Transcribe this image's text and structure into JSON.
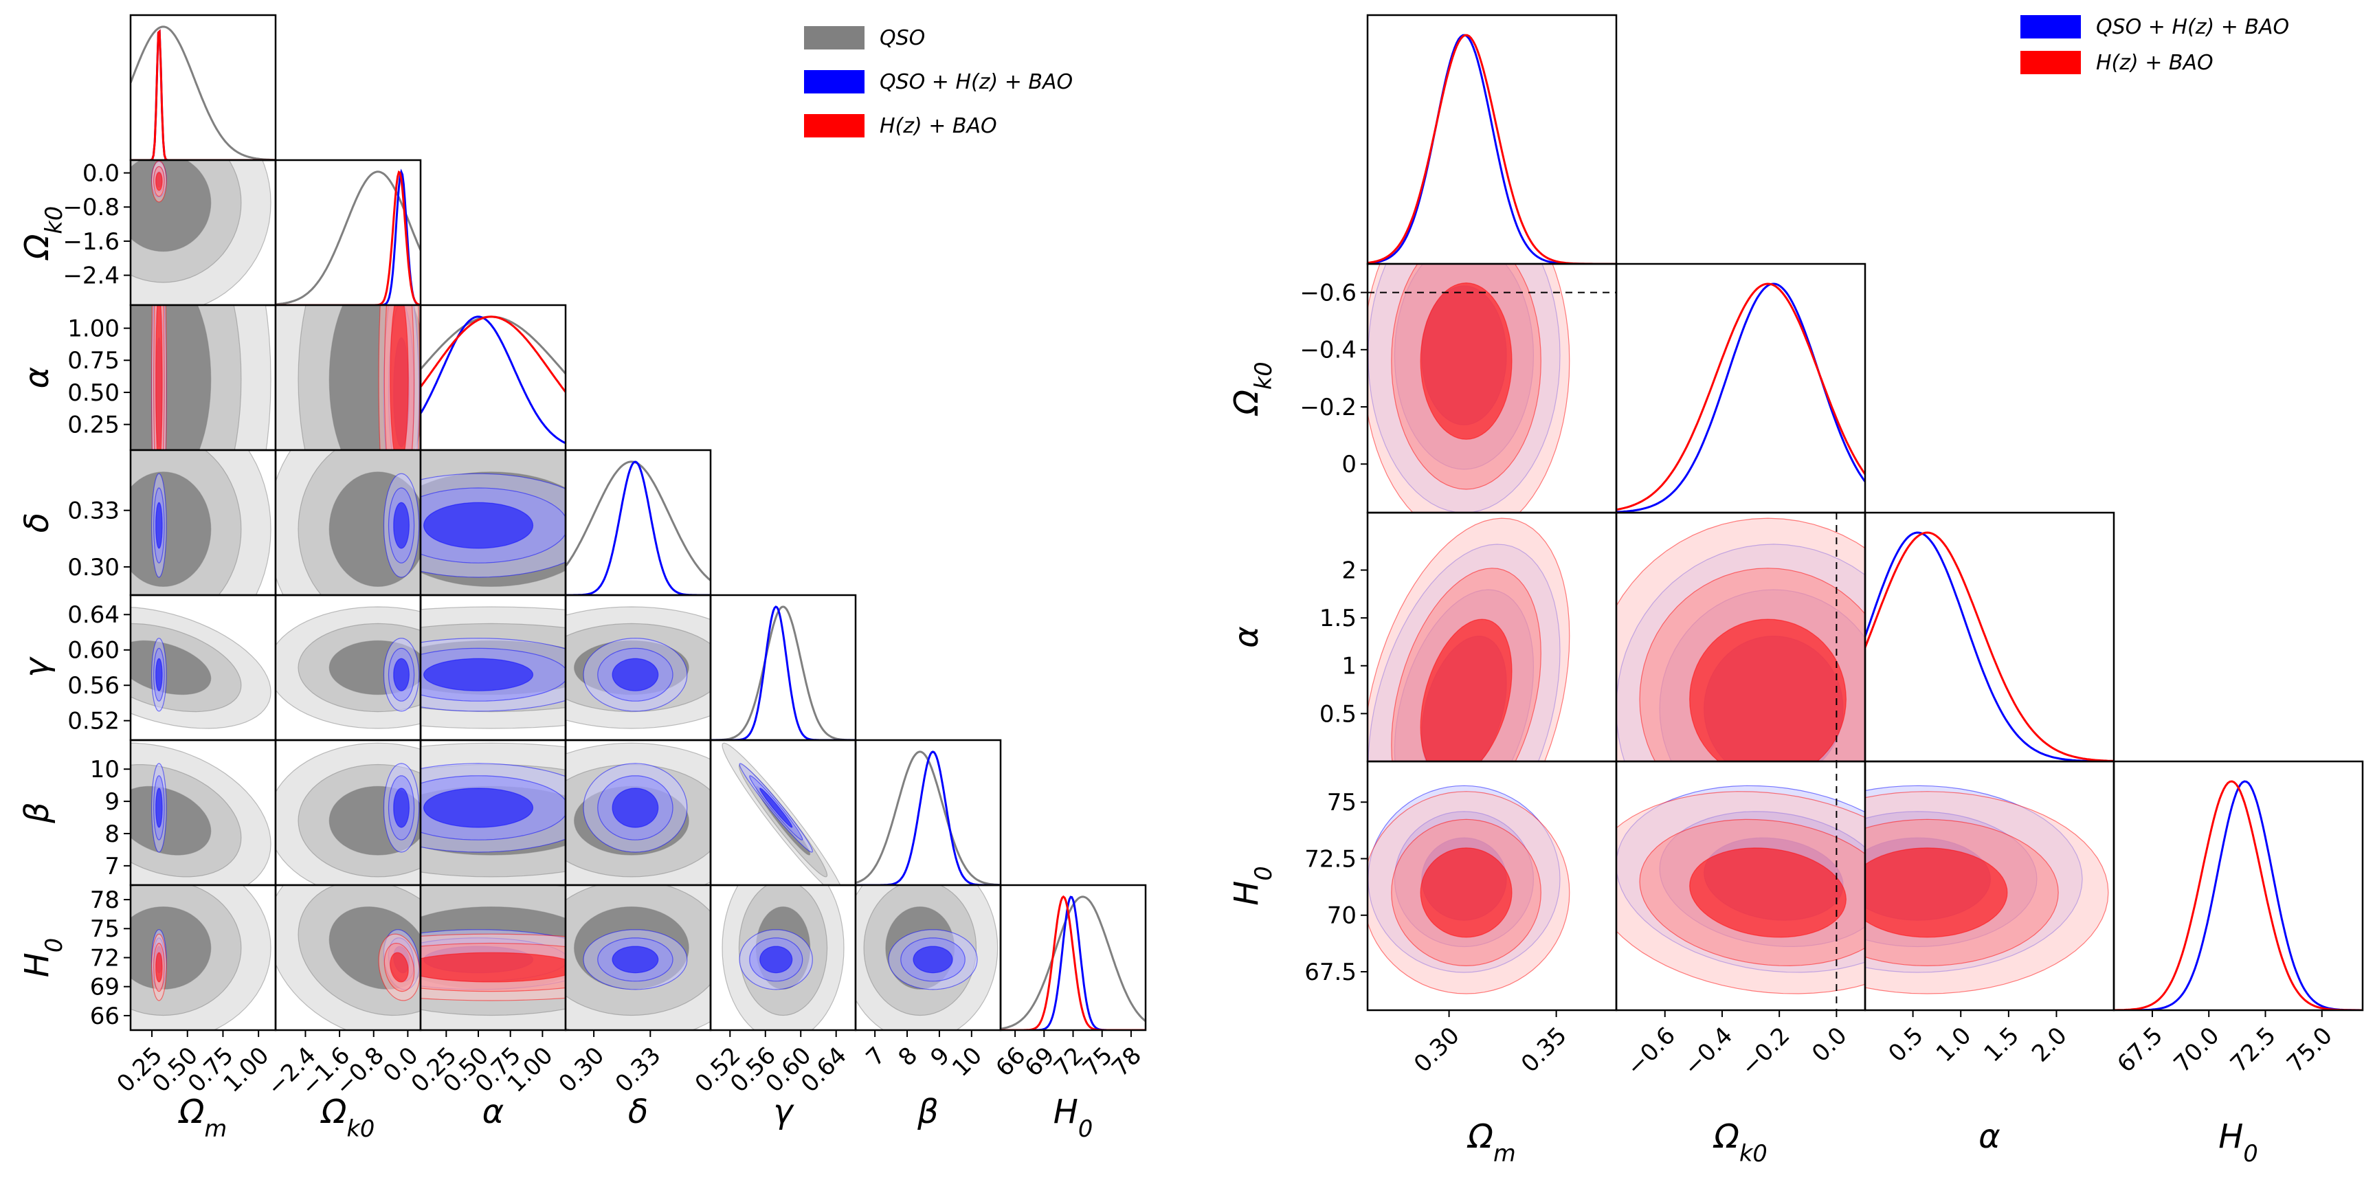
{
  "chart_data": [
    {
      "type": "corner",
      "params": [
        {
          "key": "om",
          "label": "Ωm",
          "ticks": [
            0.25,
            0.5,
            0.75,
            1.0
          ],
          "tick_labels": [
            "0.25",
            "0.50",
            "0.75",
            "1.00"
          ],
          "range": [
            0.1,
            1.12
          ]
        },
        {
          "key": "ok",
          "label": "Ωk0",
          "ticks": [
            -2.4,
            -1.6,
            -0.8,
            0.0
          ],
          "tick_labels": [
            "−2.4",
            "−1.6",
            "−0.8",
            "0.0"
          ],
          "range": [
            -3.1,
            0.3
          ]
        },
        {
          "key": "al",
          "label": "α",
          "ticks": [
            0.25,
            0.5,
            0.75,
            1.0
          ],
          "tick_labels": [
            "0.25",
            "0.50",
            "0.75",
            "1.00"
          ],
          "range": [
            0.05,
            1.18
          ]
        },
        {
          "key": "de",
          "label": "δ",
          "ticks": [
            0.3,
            0.33
          ],
          "tick_labels": [
            "0.30",
            "0.33"
          ],
          "range": [
            0.285,
            0.362
          ]
        },
        {
          "key": "ga",
          "label": "γ",
          "ticks": [
            0.52,
            0.56,
            0.6,
            0.64
          ],
          "tick_labels": [
            "0.52",
            "0.56",
            "0.60",
            "0.64"
          ],
          "range": [
            0.498,
            0.662
          ]
        },
        {
          "key": "be",
          "label": "β",
          "ticks": [
            7,
            8,
            9,
            10
          ],
          "tick_labels": [
            "7",
            "8",
            "9",
            "10"
          ],
          "range": [
            6.4,
            10.9
          ]
        },
        {
          "key": "h0",
          "label": "H0",
          "ticks": [
            66,
            69,
            72,
            75,
            78
          ],
          "tick_labels": [
            "66",
            "69",
            "72",
            "75",
            "78"
          ],
          "range": [
            64.5,
            79.5
          ]
        }
      ],
      "series": [
        {
          "name": "QSO",
          "color": "#808080",
          "fill": true,
          "mean": {
            "om": 0.33,
            "ok": -0.7,
            "al": 0.6,
            "de": 0.32,
            "ga": 0.58,
            "be": 8.4,
            "h0": 73.0
          },
          "sigma": {
            "om": 0.22,
            "ok": 0.75,
            "al": 0.55,
            "de": 0.02,
            "ga": 0.02,
            "be": 0.7,
            "h0": 2.8
          },
          "rho": {
            "om|ga": -0.4,
            "om|be": -0.3,
            "ga|be": -0.97,
            "ok|h0": -0.2
          }
        },
        {
          "name": "QSO + H(z) + BAO",
          "color": "#0000ff",
          "fill": true,
          "mean": {
            "om": 0.3,
            "ok": -0.15,
            "al": 0.5,
            "de": 0.322,
            "ga": 0.572,
            "be": 8.8,
            "h0": 71.8
          },
          "sigma": {
            "om": 0.015,
            "ok": 0.12,
            "al": 0.28,
            "de": 0.008,
            "ga": 0.012,
            "be": 0.4,
            "h0": 0.9
          },
          "rho": {
            "ga|be": -0.98,
            "ok|h0": -0.2
          }
        },
        {
          "name": "H(z) + BAO",
          "color": "#ff0000",
          "fill": true,
          "mean": {
            "om": 0.3,
            "ok": -0.2,
            "al": 0.6,
            "h0": 71.0
          },
          "sigma": {
            "om": 0.015,
            "ok": 0.14,
            "al": 0.45,
            "h0": 1.0
          },
          "rho": {
            "ok|h0": -0.2
          }
        }
      ],
      "legend": {
        "entries": [
          "QSO",
          "QSO + H(z) + BAO",
          "H(z) + BAO"
        ],
        "placement": "top-right"
      }
    },
    {
      "type": "corner",
      "params": [
        {
          "key": "om",
          "label": "Ωm",
          "ticks": [
            0.3,
            0.35
          ],
          "tick_labels": [
            "0.30",
            "0.35"
          ],
          "range": [
            0.262,
            0.378
          ]
        },
        {
          "key": "ok",
          "label": "Ωk0",
          "ticks": [
            -0.6,
            -0.4,
            -0.2,
            0.0
          ],
          "tick_labels": [
            "−0.6",
            "−0.4",
            "−0.2",
            "0.0"
          ],
          "range": [
            -0.77,
            0.1
          ]
        },
        {
          "key": "al",
          "label": "α",
          "ticks": [
            0.5,
            1.0,
            1.5,
            2.0
          ],
          "tick_labels": [
            "0.5",
            "1.0",
            "1.5",
            "2.0"
          ],
          "range": [
            0.0,
            2.6
          ]
        },
        {
          "key": "h0",
          "label": "H0",
          "ticks": [
            67.5,
            70,
            72.5,
            75
          ],
          "tick_labels": [
            "67.5",
            "70.0",
            "72.5",
            "75.0"
          ],
          "range": [
            65.8,
            76.8
          ]
        }
      ],
      "tick_labels_y": {
        "ok": [
          "0",
          "−0.2",
          "−0.4",
          "−0.6"
        ],
        "al": [
          "0.5",
          "1",
          "1.5",
          "2"
        ],
        "h0": [
          "67.5",
          "70",
          "72.5",
          "75"
        ]
      },
      "refline": {
        "ok": 0.0
      },
      "series": [
        {
          "name": "QSO + H(z) + BAO",
          "color": "#0000ff",
          "fill": true,
          "mean": {
            "om": 0.307,
            "ok": -0.22,
            "al": 0.55,
            "h0": 71.6
          },
          "sigma": {
            "om": 0.013,
            "ok": 0.16,
            "al": 0.5,
            "h0": 1.2
          },
          "rho": {
            "om|al": 0.35,
            "ok|h0": -0.15
          }
        },
        {
          "name": "H(z) + BAO",
          "color": "#ff0000",
          "fill": true,
          "mean": {
            "om": 0.308,
            "ok": -0.24,
            "al": 0.65,
            "h0": 71.0
          },
          "sigma": {
            "om": 0.014,
            "ok": 0.18,
            "al": 0.55,
            "h0": 1.3
          },
          "rho": {
            "om|al": 0.35,
            "ok|h0": -0.15
          }
        }
      ],
      "legend": {
        "entries": [
          "QSO + H(z) + BAO",
          "H(z) + BAO"
        ],
        "placement": "top-right"
      }
    }
  ]
}
